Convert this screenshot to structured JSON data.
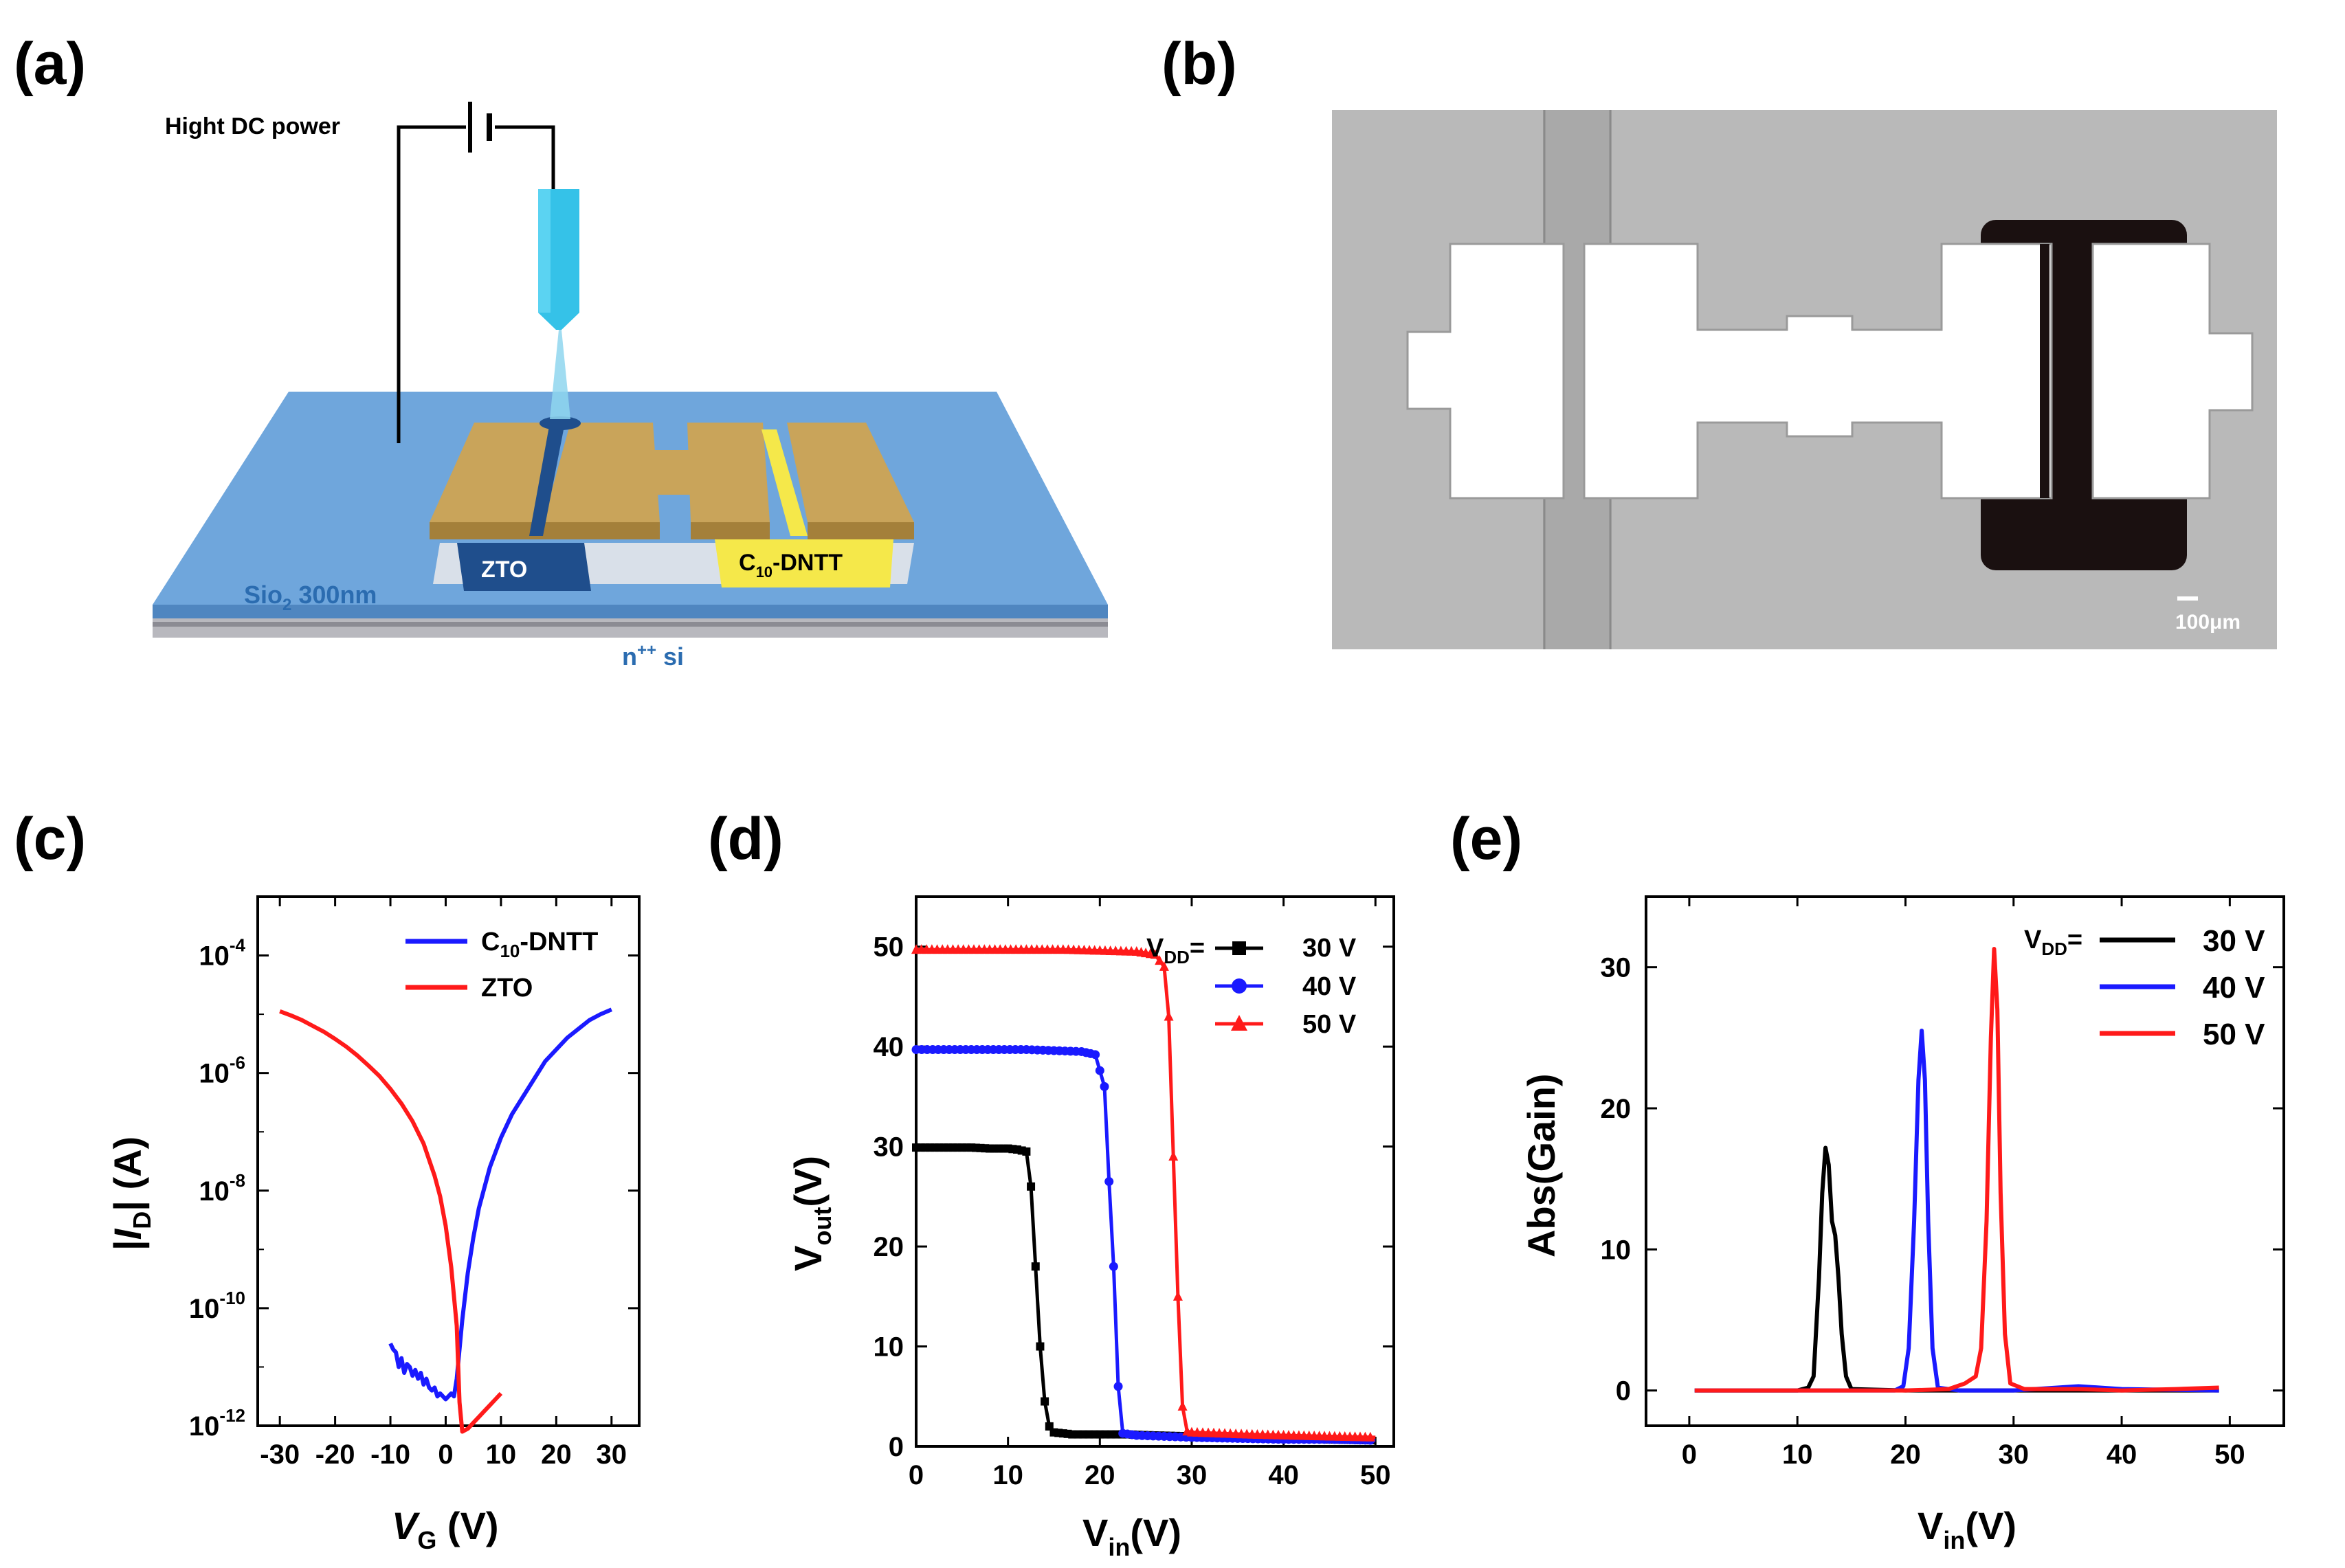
{
  "panels": {
    "a": "(a)",
    "b": "(b)",
    "c": "(c)",
    "d": "(d)",
    "e": "(e)"
  },
  "schematic": {
    "power_label": "Hight DC power",
    "zto_label": "ZTO",
    "dntt_label_main": "C",
    "dntt_label_sub": "10",
    "dntt_label_rest": "-DNTT",
    "sio2_main": "Sio",
    "sio2_sub": "2",
    "sio2_rest": " 300nm",
    "si_main": "n",
    "si_sup": "++",
    "si_rest": " si"
  },
  "micrograph": {
    "scale_bar": "100μm"
  },
  "colors": {
    "black": "#000000",
    "blue": "#1a1aff",
    "red": "#ff1a1a",
    "substrate": "#6fa6dc",
    "gold": "#c9a45a",
    "zto": "#1f4e8c",
    "dntt": "#f5e84a",
    "needle": "#35c2e8"
  },
  "chart_data": [
    {
      "id": "c",
      "type": "line",
      "title": "",
      "xlabel_main": "V",
      "xlabel_sub": "G",
      "xlabel_rest": " (V)",
      "ylabel_left": "|",
      "ylabel_main": "I",
      "ylabel_sub": "D",
      "ylabel_rest": "| (A)",
      "xlim": [
        -34,
        35
      ],
      "ylim_log10": [
        -12,
        -3
      ],
      "yscale": "log",
      "xticks": [
        -30,
        -20,
        -10,
        0,
        10,
        20,
        30
      ],
      "xtick_labels": [
        "-30",
        "-20",
        "-10",
        "0",
        "10",
        "20",
        "30"
      ],
      "yticks_exp": [
        -12,
        -10,
        -8,
        -6,
        -4
      ],
      "ytick_base": "10",
      "ytick_exponents": [
        "-12",
        "-10",
        "-8",
        "-6",
        "-4"
      ],
      "legend": [
        {
          "main": "C",
          "sub": "10",
          "rest": "-DNTT",
          "color": "#1a1aff"
        },
        {
          "main": "ZTO",
          "sub": "",
          "rest": "",
          "color": "#ff1a1a"
        }
      ],
      "series": [
        {
          "name": "C10-DNTT",
          "color": "#1a1aff",
          "x": [
            -10,
            -9.5,
            -9,
            -8.5,
            -8,
            -7.5,
            -7,
            -6.5,
            -6,
            -5.5,
            -5,
            -4.5,
            -4,
            -3.5,
            -3,
            -2.5,
            -2,
            -1.5,
            -1,
            -0.5,
            0,
            0.5,
            1,
            1.5,
            2,
            3,
            4,
            5,
            6,
            8,
            10,
            12,
            14,
            16,
            18,
            20,
            22,
            24,
            26,
            28,
            30
          ],
          "log10y": [
            -10.6,
            -10.7,
            -10.75,
            -11.0,
            -10.85,
            -11.1,
            -10.95,
            -11.0,
            -11.15,
            -11.05,
            -11.2,
            -11.1,
            -11.3,
            -11.2,
            -11.35,
            -11.4,
            -11.35,
            -11.5,
            -11.45,
            -11.5,
            -11.55,
            -11.5,
            -11.45,
            -11.5,
            -11.2,
            -10.2,
            -9.4,
            -8.8,
            -8.3,
            -7.6,
            -7.1,
            -6.7,
            -6.4,
            -6.1,
            -5.8,
            -5.6,
            -5.4,
            -5.25,
            -5.1,
            -5.0,
            -4.92
          ]
        },
        {
          "name": "ZTO",
          "color": "#ff1a1a",
          "x": [
            -30,
            -28,
            -26,
            -24,
            -22,
            -20,
            -18,
            -16,
            -14,
            -12,
            -10,
            -8,
            -6,
            -4,
            -2,
            -1,
            0,
            1,
            2,
            2.5,
            3,
            4,
            5,
            6,
            7,
            8,
            9,
            10
          ],
          "log10y": [
            -4.95,
            -5.02,
            -5.1,
            -5.2,
            -5.3,
            -5.42,
            -5.55,
            -5.7,
            -5.87,
            -6.05,
            -6.27,
            -6.52,
            -6.82,
            -7.2,
            -7.75,
            -8.1,
            -8.6,
            -9.3,
            -10.3,
            -11.6,
            -12.1,
            -12.05,
            -11.95,
            -11.85,
            -11.75,
            -11.65,
            -11.55,
            -11.45
          ]
        }
      ]
    },
    {
      "id": "d",
      "type": "line",
      "title": "",
      "xlabel_main": "V",
      "xlabel_sub": "in",
      "xlabel_rest": "(V)",
      "ylabel_main": "V",
      "ylabel_sub": "out",
      "ylabel_rest": "(V)",
      "xlim": [
        0,
        52
      ],
      "ylim": [
        0,
        55
      ],
      "xticks": [
        0,
        10,
        20,
        30,
        40,
        50
      ],
      "xtick_labels": [
        "0",
        "10",
        "20",
        "30",
        "40",
        "50"
      ],
      "yticks": [
        0,
        10,
        20,
        30,
        40,
        50
      ],
      "ytick_labels": [
        "0",
        "10",
        "20",
        "30",
        "40",
        "50"
      ],
      "legend_prefix_main": "V",
      "legend_prefix_sub": "DD",
      "legend_prefix_rest": "=",
      "legend": [
        {
          "label": "30 V",
          "color": "#000000",
          "marker": "square"
        },
        {
          "label": "40 V",
          "color": "#1a1aff",
          "marker": "circle"
        },
        {
          "label": "50 V",
          "color": "#ff1a1a",
          "marker": "triangle"
        }
      ],
      "series": [
        {
          "name": "30 V",
          "color": "#000000",
          "marker": "square",
          "x": [
            0,
            2,
            4,
            6,
            8,
            10,
            11,
            12,
            12.5,
            13,
            13.5,
            14,
            14.5,
            15,
            17,
            20,
            23,
            26,
            30,
            35,
            40,
            45,
            50
          ],
          "y": [
            29.9,
            29.9,
            29.9,
            29.9,
            29.8,
            29.8,
            29.7,
            29.5,
            26,
            18,
            10,
            4.5,
            2,
            1.4,
            1.2,
            1.2,
            1.2,
            1.1,
            1.0,
            0.9,
            0.8,
            0.7,
            0.6
          ]
        },
        {
          "name": "40 V",
          "color": "#1a1aff",
          "marker": "circle",
          "x": [
            0,
            3,
            6,
            9,
            12,
            15,
            18,
            19.5,
            20.5,
            21,
            21.5,
            22,
            22.5,
            24,
            27,
            30,
            35,
            40,
            45,
            50
          ],
          "y": [
            39.7,
            39.7,
            39.7,
            39.7,
            39.7,
            39.6,
            39.5,
            39.2,
            36,
            26.5,
            18,
            6,
            1.3,
            1.1,
            1.0,
            0.9,
            0.8,
            0.7,
            0.7,
            0.6
          ]
        },
        {
          "name": "50 V",
          "color": "#ff1a1a",
          "marker": "triangle",
          "x": [
            0,
            4,
            8,
            12,
            16,
            20,
            24,
            26,
            27,
            27.5,
            28,
            28.5,
            29,
            29.5,
            30,
            33,
            36,
            40,
            45,
            50
          ],
          "y": [
            49.7,
            49.7,
            49.7,
            49.7,
            49.7,
            49.6,
            49.5,
            49.2,
            48,
            43,
            29,
            15,
            4,
            1.5,
            1.4,
            1.3,
            1.2,
            1.1,
            1.0,
            0.9
          ]
        }
      ]
    },
    {
      "id": "e",
      "type": "line",
      "title": "",
      "xlabel_main": "V",
      "xlabel_sub": "in",
      "xlabel_rest": "(V)",
      "ylabel": "Abs(Gain)",
      "xlim": [
        -4,
        55
      ],
      "ylim": [
        -2.5,
        35
      ],
      "xticks": [
        0,
        10,
        20,
        30,
        40,
        50
      ],
      "xtick_labels": [
        "0",
        "10",
        "20",
        "30",
        "40",
        "50"
      ],
      "yticks": [
        0,
        10,
        20,
        30
      ],
      "ytick_labels": [
        "0",
        "10",
        "20",
        "30"
      ],
      "legend_prefix_main": "V",
      "legend_prefix_sub": "DD",
      "legend_prefix_rest": "=",
      "legend": [
        {
          "label": "30 V",
          "color": "#000000"
        },
        {
          "label": "40 V",
          "color": "#1a1aff"
        },
        {
          "label": "50 V",
          "color": "#ff1a1a"
        }
      ],
      "series": [
        {
          "name": "30 V",
          "color": "#000000",
          "x": [
            0.5,
            5,
            10,
            11,
            11.5,
            12,
            12.3,
            12.6,
            12.9,
            13.2,
            13.5,
            13.8,
            14.1,
            14.5,
            15,
            20,
            30,
            40,
            49
          ],
          "y": [
            0,
            0,
            0,
            0.2,
            1,
            8,
            14,
            17.2,
            16,
            12,
            11,
            8,
            4,
            1,
            0.1,
            0,
            0,
            0,
            0
          ]
        },
        {
          "name": "40 V",
          "color": "#1a1aff",
          "x": [
            0.5,
            10,
            19,
            19.8,
            20.3,
            20.8,
            21.2,
            21.5,
            21.8,
            22.1,
            22.5,
            23,
            25,
            30,
            36,
            40,
            49
          ],
          "y": [
            0,
            0,
            0,
            0.3,
            3,
            12,
            22,
            25.5,
            22,
            12,
            3,
            0.2,
            0,
            0,
            0.3,
            0.1,
            0
          ]
        },
        {
          "name": "50 V",
          "color": "#ff1a1a",
          "x": [
            0.5,
            10,
            20,
            24,
            25.5,
            26.5,
            27,
            27.5,
            27.9,
            28.2,
            28.5,
            28.8,
            29.2,
            29.7,
            31,
            36,
            40,
            45,
            49
          ],
          "y": [
            0,
            0,
            0,
            0.1,
            0.5,
            1,
            3,
            12,
            25,
            31.3,
            27,
            14,
            4,
            0.5,
            0.1,
            0.1,
            0,
            0.1,
            0.2
          ]
        }
      ]
    }
  ]
}
